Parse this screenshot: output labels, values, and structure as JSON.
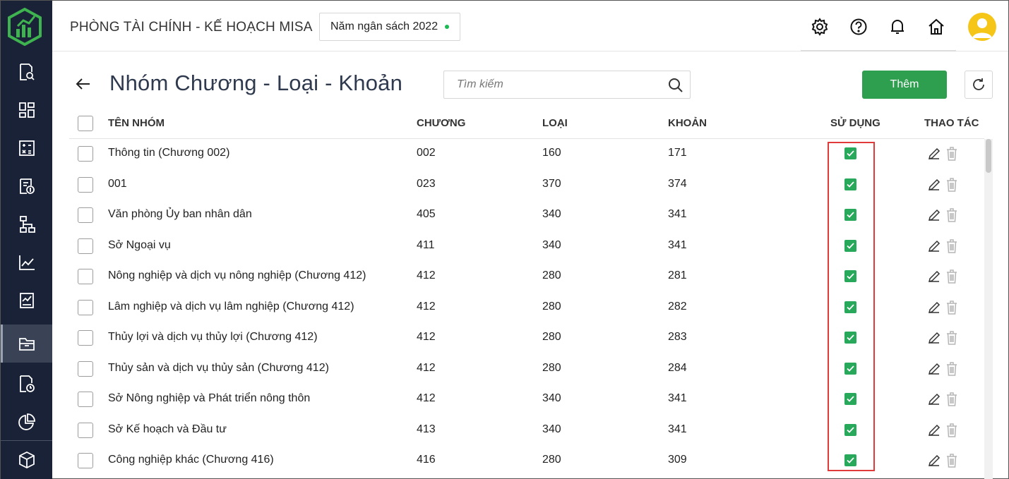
{
  "header": {
    "company": "PHÒNG TÀI CHÍNH - KẾ HOẠCH MISA",
    "budget_year": "Năm ngân sách 2022"
  },
  "sidebar": {
    "items": [
      {
        "icon": "document-search-icon"
      },
      {
        "icon": "dashboard-icon"
      },
      {
        "icon": "calculator-icon"
      },
      {
        "icon": "invoice-icon"
      },
      {
        "icon": "org-chart-icon"
      },
      {
        "icon": "line-chart-icon"
      },
      {
        "icon": "report-chart-icon"
      },
      {
        "icon": "folder-icon",
        "active": true
      },
      {
        "icon": "document-clock-icon"
      },
      {
        "icon": "pie-chart-icon"
      },
      {
        "icon": "cube-icon"
      }
    ]
  },
  "page": {
    "title": "Nhóm Chương - Loại - Khoản",
    "search_placeholder": "Tìm kiếm",
    "add_label": "Thêm"
  },
  "table": {
    "columns": {
      "name": "TÊN NHÓM",
      "chapter": "CHƯƠNG",
      "type": "LOẠI",
      "item": "KHOẢN",
      "use": "SỬ DỤNG",
      "actions": "THAO TÁC"
    },
    "rows": [
      {
        "name": "Thông tin (Chương 002)",
        "chapter": "002",
        "type": "160",
        "item": "171",
        "used": true
      },
      {
        "name": "001",
        "chapter": "023",
        "type": "370",
        "item": "374",
        "used": true
      },
      {
        "name": "Văn phòng Ủy ban nhân dân",
        "chapter": "405",
        "type": "340",
        "item": "341",
        "used": true
      },
      {
        "name": "Sở Ngoại vụ",
        "chapter": "411",
        "type": "340",
        "item": "341",
        "used": true
      },
      {
        "name": "Nông nghiệp và dịch vụ nông nghiệp (Chương 412)",
        "chapter": "412",
        "type": "280",
        "item": "281",
        "used": true
      },
      {
        "name": "Lâm nghiệp và dịch vụ lâm nghiệp (Chương 412)",
        "chapter": "412",
        "type": "280",
        "item": "282",
        "used": true
      },
      {
        "name": "Thủy lợi và dịch vụ thủy lợi (Chương 412)",
        "chapter": "412",
        "type": "280",
        "item": "283",
        "used": true
      },
      {
        "name": "Thủy sản và dịch vụ thủy sản (Chương 412)",
        "chapter": "412",
        "type": "280",
        "item": "284",
        "used": true
      },
      {
        "name": "Sở Nông nghiệp và Phát triển nông thôn",
        "chapter": "412",
        "type": "340",
        "item": "341",
        "used": true
      },
      {
        "name": "Sở Kế hoạch và Đầu tư",
        "chapter": "413",
        "type": "340",
        "item": "341",
        "used": true
      },
      {
        "name": "Công nghiệp khác (Chương 416)",
        "chapter": "416",
        "type": "280",
        "item": "309",
        "used": true
      }
    ]
  },
  "colors": {
    "sidebar_bg": "#1a2238",
    "primary_green": "#2e9e4f",
    "highlight_red": "#e03a3a"
  }
}
